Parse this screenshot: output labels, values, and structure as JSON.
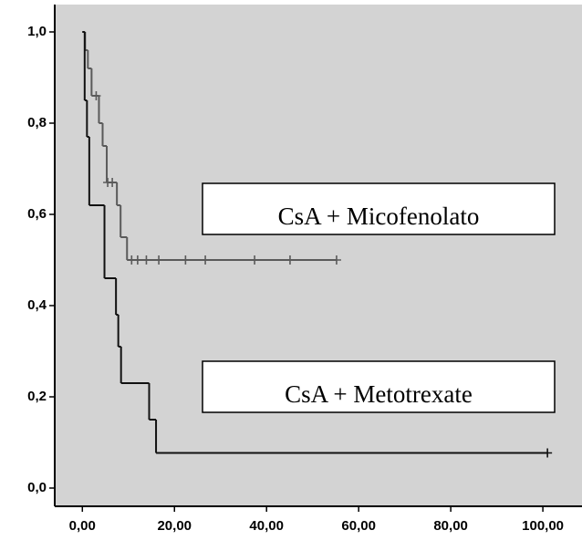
{
  "chart_data": {
    "type": "survival",
    "xlim": [
      -6,
      108.5
    ],
    "ylim": [
      -0.04,
      1.06
    ],
    "xticks": [
      {
        "value": 0,
        "label": "0,00"
      },
      {
        "value": 20,
        "label": "20,00"
      },
      {
        "value": 40,
        "label": "40,00"
      },
      {
        "value": 60,
        "label": "60,00"
      },
      {
        "value": 80,
        "label": "80,00"
      },
      {
        "value": 100,
        "label": "100,00"
      }
    ],
    "yticks": [
      {
        "value": 0,
        "label": "0,0"
      },
      {
        "value": 0.2,
        "label": "0,2"
      },
      {
        "value": 0.4,
        "label": "0,4"
      },
      {
        "value": 0.6,
        "label": "0,6"
      },
      {
        "value": 0.8,
        "label": "0,8"
      },
      {
        "value": 1,
        "label": "1,0"
      }
    ],
    "series": [
      {
        "name": "CsA + Micofenolato",
        "color": "#5a5a5a",
        "x": [
          0,
          0.6,
          1.2,
          2.0,
          3.6,
          4.4,
          5.3,
          7.5,
          8.3,
          9.7,
          55.2
        ],
        "values": [
          1.0,
          0.96,
          0.92,
          0.86,
          0.8,
          0.75,
          0.67,
          0.62,
          0.55,
          0.5,
          0.5
        ],
        "censored": {
          "x": [
            3.0,
            5.5,
            6.5,
            10.7,
            12.0,
            13.9,
            16.6,
            22.4,
            26.7,
            37.4,
            45.1,
            55.2
          ],
          "values": [
            0.86,
            0.67,
            0.67,
            0.5,
            0.5,
            0.5,
            0.5,
            0.5,
            0.5,
            0.5,
            0.5,
            0.5
          ]
        }
      },
      {
        "name": "CsA + Metotrexate",
        "color": "#111111",
        "x": [
          0,
          0.5,
          1.0,
          1.5,
          4.8,
          7.3,
          7.8,
          8.4,
          14.5,
          16.0,
          101.0
        ],
        "values": [
          1.0,
          0.85,
          0.77,
          0.62,
          0.46,
          0.38,
          0.31,
          0.23,
          0.15,
          0.077,
          0.077
        ],
        "censored": {
          "x": [
            101.0
          ],
          "values": [
            0.077
          ]
        }
      }
    ]
  }
}
